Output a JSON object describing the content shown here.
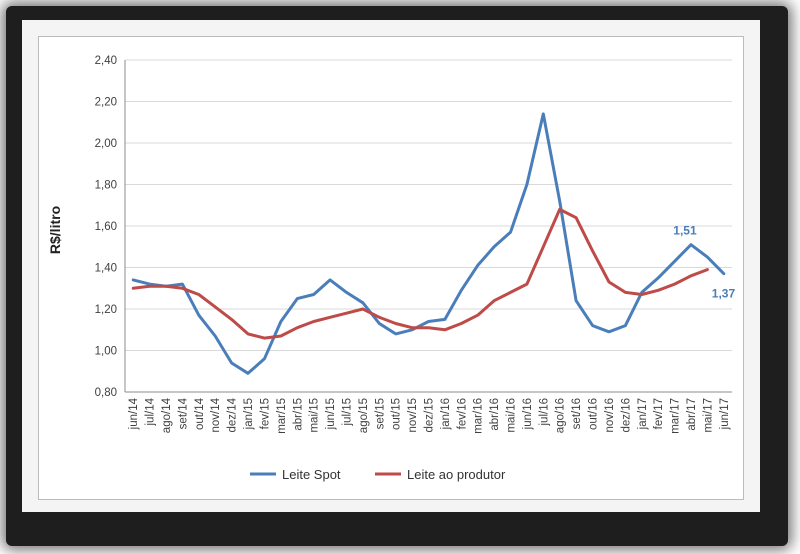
{
  "chart_data": {
    "type": "line",
    "title": "",
    "xlabel": "",
    "ylabel": "R$/litro",
    "ylim": [
      0.8,
      2.4
    ],
    "yticks": [
      "0,80",
      "1,00",
      "1,20",
      "1,40",
      "1,60",
      "1,80",
      "2,00",
      "2,20",
      "2,40"
    ],
    "grid": true,
    "legend_position": "bottom",
    "categories": [
      "jun/14",
      "jul/14",
      "ago/14",
      "set/14",
      "out/14",
      "nov/14",
      "dez/14",
      "jan/15",
      "fev/15",
      "mar/15",
      "abr/15",
      "mai/15",
      "jun/15",
      "jul/15",
      "ago/15",
      "set/15",
      "out/15",
      "nov/15",
      "dez/15",
      "jan/16",
      "fev/16",
      "mar/16",
      "abr/16",
      "mai/16",
      "jun/16",
      "jul/16",
      "ago/16",
      "set/16",
      "out/16",
      "nov/16",
      "dez/16",
      "jan/17",
      "fev/17",
      "mar/17",
      "abr/17",
      "mai/17",
      "jun/17"
    ],
    "series": [
      {
        "name": "Leite Spot",
        "color": "#4a7ebb",
        "values": [
          1.34,
          1.32,
          1.31,
          1.32,
          1.17,
          1.07,
          0.94,
          0.89,
          0.96,
          1.14,
          1.25,
          1.27,
          1.34,
          1.28,
          1.23,
          1.13,
          1.08,
          1.1,
          1.14,
          1.15,
          1.29,
          1.41,
          1.5,
          1.57,
          1.8,
          2.14,
          1.72,
          1.24,
          1.12,
          1.09,
          1.12,
          1.28,
          1.35,
          1.43,
          1.51,
          1.45,
          1.37
        ]
      },
      {
        "name": "Leite ao produtor",
        "color": "#be4b48",
        "values": [
          1.3,
          1.31,
          1.31,
          1.3,
          1.27,
          1.21,
          1.15,
          1.08,
          1.06,
          1.07,
          1.11,
          1.14,
          1.16,
          1.18,
          1.2,
          1.16,
          1.13,
          1.11,
          1.11,
          1.1,
          1.13,
          1.17,
          1.24,
          1.28,
          1.32,
          1.5,
          1.68,
          1.64,
          1.48,
          1.33,
          1.28,
          1.27,
          1.29,
          1.32,
          1.36,
          1.39,
          null
        ]
      }
    ],
    "annotations": [
      {
        "series": 0,
        "category": "abr/17",
        "text": "1,51"
      },
      {
        "series": 0,
        "category": "jun/17",
        "text": "1,37"
      }
    ]
  }
}
